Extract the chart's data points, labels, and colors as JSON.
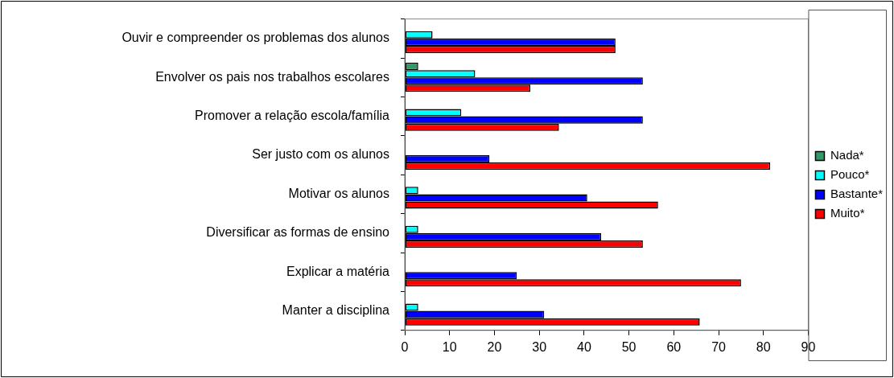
{
  "chart_data": {
    "type": "bar",
    "orientation": "horizontal",
    "categories": [
      "Ouvir e compreender os problemas dos alunos",
      "Envolver os pais nos trabalhos escolares",
      "Promover a relação escola/família",
      "Ser justo com os alunos",
      "Motivar os alunos",
      "Diversificar as formas de ensino",
      "Explicar a matéria",
      "Manter a disciplina"
    ],
    "series": [
      {
        "name": "Nada*",
        "color": "#339966",
        "values": [
          null,
          3,
          null,
          null,
          null,
          null,
          null,
          null
        ]
      },
      {
        "name": "Pouco*",
        "color": "#00ffff",
        "values": [
          6.2,
          15.7,
          12.6,
          null,
          3,
          3,
          null,
          3
        ]
      },
      {
        "name": "Bastante*",
        "color": "#0000ff",
        "values": [
          47,
          53.1,
          53.1,
          18.9,
          40.7,
          43.8,
          25,
          31.1
        ]
      },
      {
        "name": "Muito*",
        "color": "#ff0000",
        "values": [
          47,
          28,
          34.4,
          81.5,
          56.5,
          53.1,
          75,
          65.8
        ]
      }
    ],
    "xlim": [
      0,
      90
    ],
    "xticks": [
      0,
      10,
      20,
      30,
      40,
      50,
      60,
      70,
      80,
      90
    ],
    "grid": false,
    "legend": "right"
  }
}
